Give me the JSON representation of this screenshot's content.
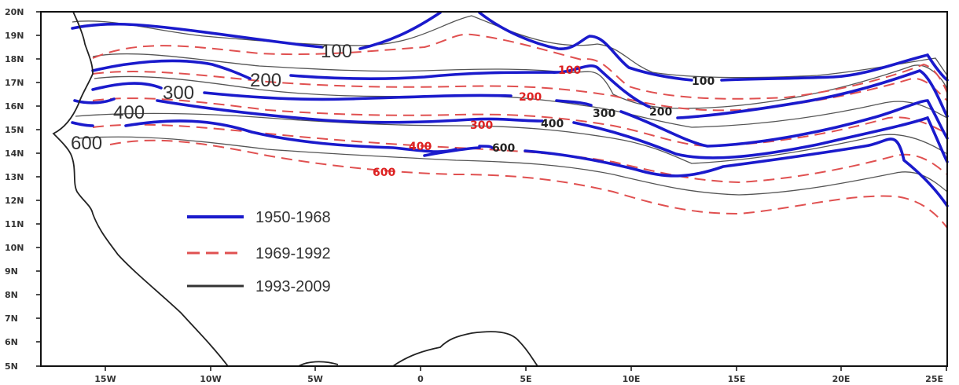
{
  "map": {
    "colors": {
      "period_1950_1968": "#1a1acc",
      "period_1969_1992": "#e05050",
      "period_1993_2009": "#555555",
      "coast": "#222222",
      "label_red": "#dd2222",
      "label_dark": "#222222"
    },
    "y_ticks": [
      "20N",
      "19N",
      "18N",
      "17N",
      "16N",
      "15N",
      "14N",
      "13N",
      "12N",
      "11N",
      "10N",
      "9N",
      "8N",
      "7N",
      "6N",
      "5N"
    ],
    "x_ticks": [
      "15W",
      "10W",
      "5W",
      "0",
      "5E",
      "10E",
      "15E",
      "20E",
      "25E"
    ],
    "legend": [
      {
        "label": "1950-1968",
        "color_key": "period_1950_1968",
        "style": "solid"
      },
      {
        "label": "1969-1992",
        "color_key": "period_1969_1992",
        "style": "dashed"
      },
      {
        "label": "1993-2009",
        "color_key": "period_1993_2009",
        "style": "solid"
      }
    ],
    "contour_labels_large": [
      "100",
      "200",
      "300",
      "400",
      "600"
    ],
    "contour_labels_red": [
      "100",
      "200",
      "300",
      "400",
      "600"
    ],
    "contour_labels_dark": [
      "100",
      "200",
      "300",
      "400",
      "600"
    ]
  }
}
